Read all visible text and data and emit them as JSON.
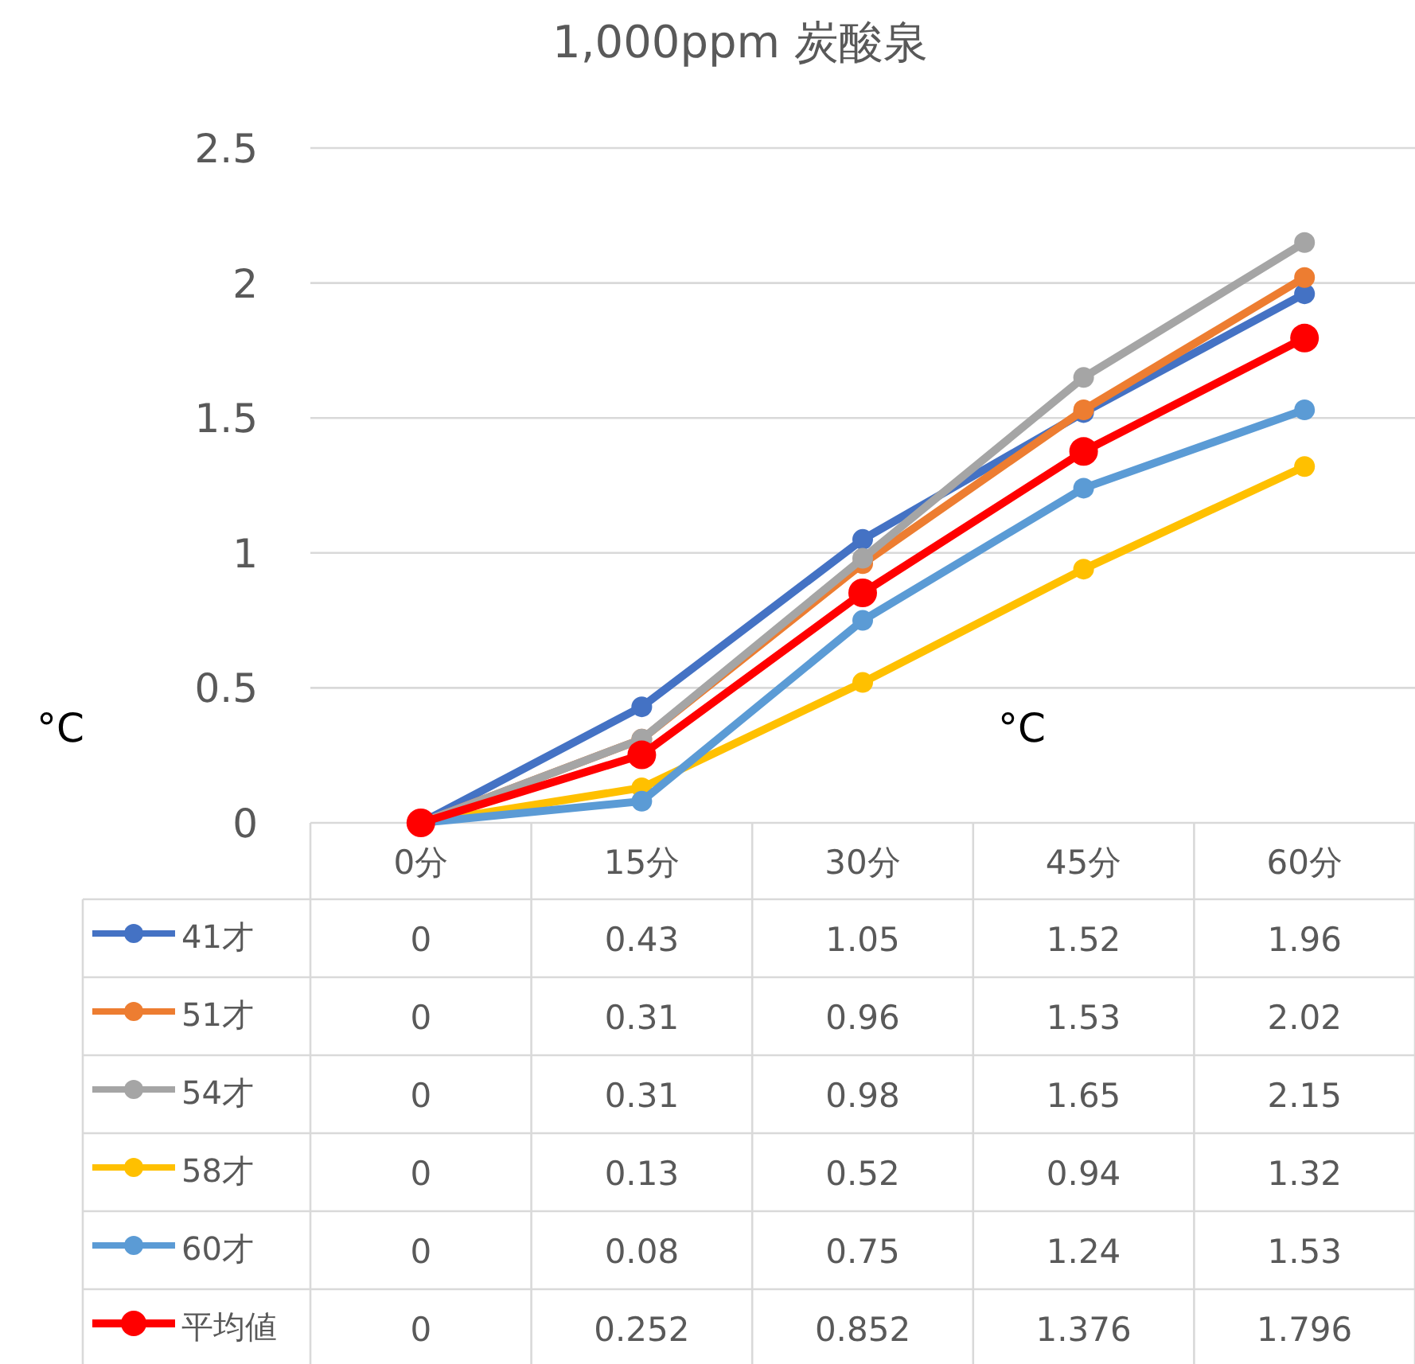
{
  "chart_data": {
    "type": "line",
    "title": "1,000ppm 炭酸泉",
    "ylabel": "°C",
    "annotations": [
      "°C"
    ],
    "categories": [
      "0分",
      "15分",
      "30分",
      "45分",
      "60分"
    ],
    "series": [
      {
        "name": "41才",
        "color": "#4472c4",
        "values": [
          0,
          0.43,
          1.05,
          1.52,
          1.96
        ]
      },
      {
        "name": "51才",
        "color": "#ed7d31",
        "values": [
          0,
          0.31,
          0.96,
          1.53,
          2.02
        ]
      },
      {
        "name": "54才",
        "color": "#a5a5a5",
        "values": [
          0,
          0.31,
          0.98,
          1.65,
          2.15
        ]
      },
      {
        "name": "58才",
        "color": "#ffc000",
        "values": [
          0,
          0.13,
          0.52,
          0.94,
          1.32
        ]
      },
      {
        "name": "60才",
        "color": "#5b9bd5",
        "values": [
          0,
          0.08,
          0.75,
          1.24,
          1.53
        ]
      },
      {
        "name": "平均値",
        "color": "#ff0000",
        "values": [
          0,
          0.252,
          0.852,
          1.376,
          1.796
        ]
      }
    ],
    "ylim": [
      0,
      2.5
    ],
    "yticks": [
      0,
      0.5,
      1,
      1.5,
      2,
      2.5
    ],
    "grid": "y",
    "legend": "bottom",
    "data_labels": true,
    "marker": "circle",
    "line_style": "solid"
  }
}
